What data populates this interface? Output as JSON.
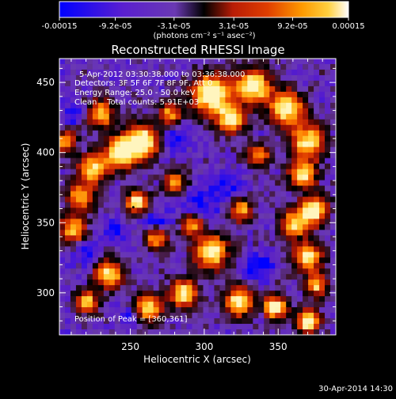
{
  "colorbar": {
    "tick_labels": [
      "-0.00015",
      "-9.2e-05",
      "-3.1e-05",
      "3.1e-05",
      "9.2e-05",
      "0.00015"
    ],
    "tick_values": [
      -0.00015,
      -9.2e-05,
      -3.1e-05,
      3.1e-05,
      9.2e-05,
      0.00015
    ],
    "range": [
      -0.00015,
      0.00015
    ],
    "units_text": "(photons cm⁻² s⁻¹ asec⁻²)",
    "colors": [
      "#0000ff",
      "#5a1fd0",
      "#6a39b3",
      "#000000",
      "#b81c06",
      "#e03e00",
      "#fe9a00",
      "#ffd040",
      "#ffffff"
    ]
  },
  "title": "Reconstructed RHESSI Image",
  "annotations": {
    "time": "5-Apr-2012 03:30:38.000 to 03:36:38.000",
    "detectors": "Detectors: 3F 5F 6F 7F 8F 9F, Att 0",
    "energy": "Energy Range: 25.0 - 50.0 keV",
    "clean": "Clean    Total counts: 5.91E+03",
    "peak": "Position of Peak = [360,361]"
  },
  "footer": {
    "timestamp": "30-Apr-2014 14:30"
  },
  "chart_data": {
    "type": "heatmap",
    "title": "Reconstructed RHESSI Image",
    "xlabel": "Heliocentric X (arcsec)",
    "ylabel": "Heliocentric Y (arcsec)",
    "xlim": [
      202,
      389
    ],
    "ylim": [
      270,
      467
    ],
    "xticks": [
      250,
      300,
      350
    ],
    "xtick_labels": [
      "250",
      "300",
      "350"
    ],
    "yticks": [
      300,
      350,
      400,
      450
    ],
    "ytick_labels": [
      "300",
      "350",
      "400",
      "450"
    ],
    "peak_position": [
      360,
      361
    ],
    "colorbar_range": [
      -0.00015,
      0.00015
    ]
  }
}
